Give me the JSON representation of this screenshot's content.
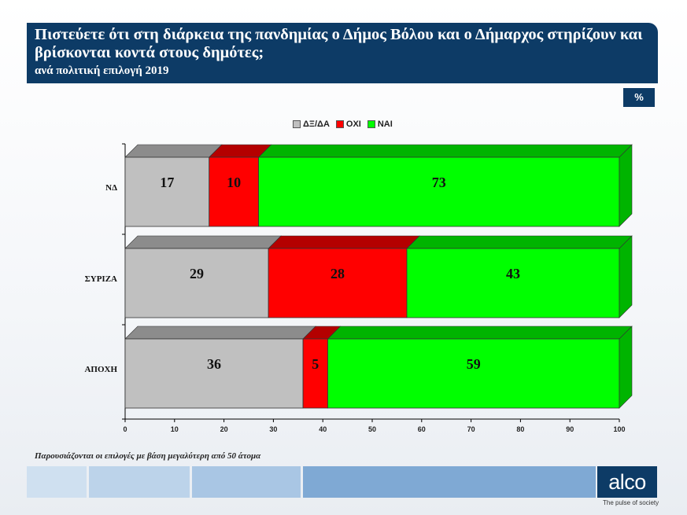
{
  "header": {
    "title": "Πιστεύετε ότι στη διάρκεια της πανδημίας ο Δήμος Βόλου και ο Δήμαρχος στηρίζουν και βρίσκονται κοντά στους δημότες;",
    "subtitle": "ανά πολιτική επιλογή  2019"
  },
  "unit_badge": "%",
  "note": "Παρουσιάζονται οι επιλογές με βάση μεγαλύτερη από 50 άτομα",
  "logo": {
    "text": "alco",
    "tagline": "The pulse of society"
  },
  "colors": {
    "dxda": "#c0c0c0",
    "dxda_top": "#8c8c8c",
    "oxi": "#ff0000",
    "oxi_top": "#b40000",
    "nai": "#00ff00",
    "nai_top": "#00b400",
    "header": "#0d3b66"
  },
  "chart_data": {
    "type": "bar",
    "orientation": "horizontal",
    "stacked": true,
    "categories": [
      "ΝΔ",
      "ΣΥΡΙΖΑ",
      "ΑΠΟΧΗ"
    ],
    "series": [
      {
        "name": "ΔΞ/ΔΑ",
        "values": [
          17,
          29,
          36
        ]
      },
      {
        "name": "ΟΧΙ",
        "values": [
          10,
          28,
          5
        ]
      },
      {
        "name": "ΝΑΙ",
        "values": [
          73,
          43,
          59
        ]
      }
    ],
    "xlim": [
      0,
      100
    ],
    "xticks": [
      0,
      10,
      20,
      30,
      40,
      50,
      60,
      70,
      80,
      90,
      100
    ],
    "legend": "top-center",
    "grid": false
  }
}
